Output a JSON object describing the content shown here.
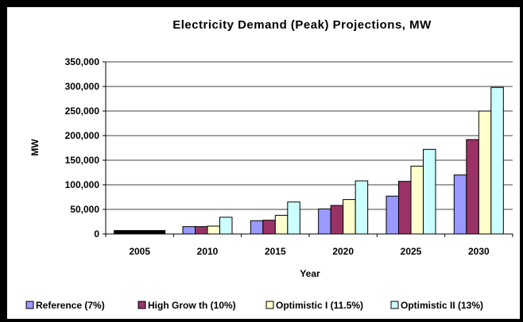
{
  "chart_data": {
    "type": "bar",
    "title": "Electricity Demand (Peak) Projections, MW",
    "xlabel": "Year",
    "ylabel": "MW",
    "ylim": [
      0,
      350000
    ],
    "yticks": [
      0,
      50000,
      100000,
      150000,
      200000,
      250000,
      300000,
      350000
    ],
    "ytick_labels": [
      "0",
      "50,000",
      "100,000",
      "150,000",
      "200,000",
      "250,000",
      "300,000",
      "350,000"
    ],
    "categories": [
      "2005",
      "2010",
      "2015",
      "2020",
      "2025",
      "2030"
    ],
    "grid": "horizontal",
    "legend_position": "bottom",
    "base_2005": 7000,
    "base_2005_color": "#000000",
    "series": [
      {
        "name": "Reference (7%)",
        "color": "#9999ff",
        "values": [
          null,
          15000,
          27000,
          51000,
          77000,
          120000
        ]
      },
      {
        "name": "High Grow th (10%)",
        "color": "#993366",
        "values": [
          null,
          15000,
          28000,
          58000,
          107000,
          192000
        ]
      },
      {
        "name": "Optimistic I (11.5%)",
        "color": "#ffffcc",
        "values": [
          null,
          16000,
          38000,
          70000,
          138000,
          250000
        ]
      },
      {
        "name": "Optimistic II (13%)",
        "color": "#ccffff",
        "values": [
          null,
          34000,
          65000,
          108000,
          172000,
          298000
        ]
      }
    ]
  }
}
